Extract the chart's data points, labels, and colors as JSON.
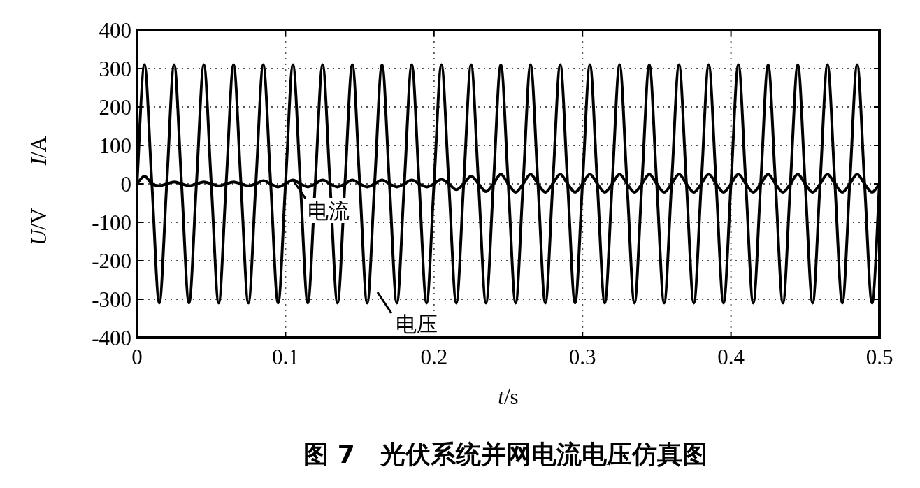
{
  "chart_data": {
    "type": "line",
    "title": "图 7　光伏系统并网电流电压仿真图",
    "xlabel": "*t*/s",
    "ylabel": "*U*/V　　*I*/A",
    "grid": true,
    "legend": "bottom left",
    "marker": "none",
    "line_style": "solid",
    "xlim": [
      0,
      0.5
    ],
    "ylim": [
      -400,
      400
    ],
    "xticks": [
      0,
      0.1,
      0.2,
      0.3,
      0.4,
      0.5
    ],
    "yticks": [
      -400,
      -300,
      -200,
      -100,
      0,
      100,
      200,
      300,
      400
    ],
    "x": [
      0,
      0.005,
      0.01,
      0.015,
      0.02,
      0.025,
      0.03,
      0.035,
      0.04,
      0.045,
      0.05,
      0.055,
      0.06,
      0.065,
      0.07,
      0.075,
      0.08,
      0.085,
      0.09,
      0.095,
      0.1,
      0.105,
      0.11,
      0.115,
      0.12,
      0.125,
      0.13,
      0.135,
      0.14,
      0.145,
      0.15,
      0.155,
      0.16,
      0.165,
      0.17,
      0.175,
      0.18,
      0.185,
      0.19,
      0.195,
      0.2,
      0.205,
      0.21,
      0.215,
      0.22,
      0.225,
      0.23,
      0.235,
      0.24,
      0.245,
      0.25,
      0.255,
      0.26,
      0.265,
      0.27,
      0.275,
      0.28,
      0.285,
      0.29,
      0.295,
      0.3,
      0.305,
      0.31,
      0.315,
      0.32,
      0.325,
      0.33,
      0.335,
      0.34,
      0.345,
      0.35,
      0.355,
      0.36,
      0.365,
      0.37,
      0.375,
      0.38,
      0.385,
      0.39,
      0.395,
      0.4,
      0.405,
      0.41,
      0.415,
      0.42,
      0.425,
      0.43,
      0.435,
      0.44,
      0.445,
      0.45,
      0.455,
      0.46,
      0.465,
      0.47,
      0.475,
      0.48,
      0.485,
      0.49,
      0.495,
      0.5
    ],
    "series": [
      {
        "name": "电压",
        "color": "#000000",
        "values": [
          0,
          310,
          0,
          -310,
          0,
          310,
          0,
          -310,
          0,
          310,
          0,
          -310,
          0,
          310,
          0,
          -310,
          0,
          310,
          0,
          -310,
          0,
          310,
          0,
          -310,
          0,
          310,
          0,
          -310,
          0,
          310,
          0,
          -310,
          0,
          310,
          0,
          -310,
          0,
          310,
          0,
          -310,
          0,
          310,
          0,
          -310,
          0,
          310,
          0,
          -310,
          0,
          310,
          0,
          -310,
          0,
          310,
          0,
          -310,
          0,
          310,
          0,
          -310,
          0,
          310,
          0,
          -310,
          0,
          310,
          0,
          -310,
          0,
          310,
          0,
          -310,
          0,
          310,
          0,
          -310,
          0,
          310,
          0,
          -310,
          0,
          310,
          0,
          -310,
          0,
          310,
          0,
          -310,
          0,
          310,
          0,
          -310,
          0,
          310,
          0,
          -310,
          0,
          310,
          0,
          -310,
          0
        ]
      },
      {
        "name": "电流",
        "color": "#000000",
        "values": [
          0,
          20,
          0,
          -5,
          0,
          5,
          0,
          -5,
          0,
          5,
          0,
          -5,
          0,
          5,
          0,
          -5,
          0,
          8,
          0,
          -8,
          0,
          10,
          0,
          -8,
          0,
          10,
          0,
          -8,
          0,
          10,
          0,
          -8,
          0,
          10,
          0,
          -8,
          0,
          10,
          0,
          -8,
          0,
          12,
          0,
          -15,
          0,
          20,
          0,
          -20,
          0,
          25,
          0,
          -22,
          0,
          25,
          0,
          -22,
          0,
          25,
          0,
          -22,
          0,
          25,
          0,
          -22,
          0,
          25,
          0,
          -22,
          0,
          25,
          0,
          -22,
          0,
          25,
          0,
          -22,
          0,
          25,
          0,
          -22,
          0,
          25,
          0,
          -22,
          0,
          25,
          0,
          -22,
          0,
          25,
          0,
          -22,
          0,
          25,
          0,
          -22,
          0,
          25,
          0,
          -22,
          0
        ]
      }
    ]
  }
}
